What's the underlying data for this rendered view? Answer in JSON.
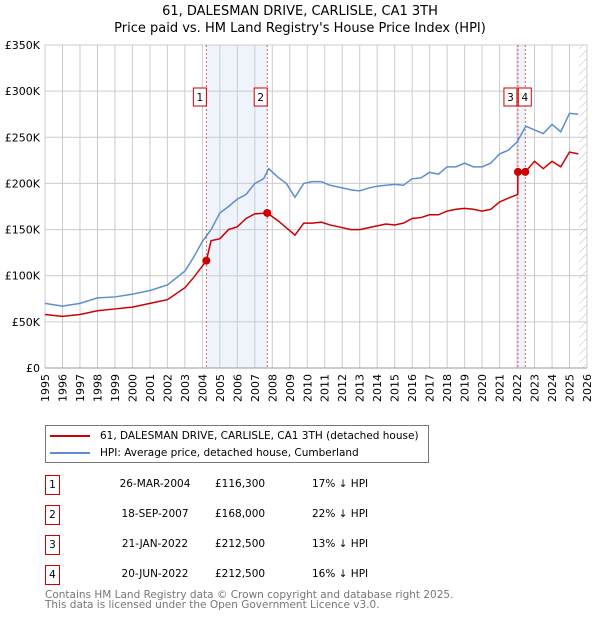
{
  "title": "61, DALESMAN DRIVE, CARLISLE, CA1 3TH",
  "subtitle": "Price paid vs. HM Land Registry's House Price Index (HPI)",
  "colors": {
    "property": "#cc0000",
    "hpi": "#5b8fd0",
    "shade": "#eef3fc"
  },
  "legend": {
    "property": "61, DALESMAN DRIVE, CARLISLE, CA1 3TH (detached house)",
    "hpi": "HPI: Average price, detached house, Cumberland"
  },
  "sales": [
    {
      "n": "1",
      "date": "26-MAR-2004",
      "price": "£116,300",
      "hpi": "17% ↓ HPI"
    },
    {
      "n": "2",
      "date": "18-SEP-2007",
      "price": "£168,000",
      "hpi": "22% ↓ HPI"
    },
    {
      "n": "3",
      "date": "21-JAN-2022",
      "price": "£212,500",
      "hpi": "13% ↓ HPI"
    },
    {
      "n": "4",
      "date": "20-JUN-2022",
      "price": "£212,500",
      "hpi": "16% ↓ HPI"
    }
  ],
  "footer": {
    "line1": "Contains HM Land Registry data © Crown copyright and database right 2025.",
    "line2": "This data is licensed under the Open Government Licence v3.0."
  },
  "chart_data": {
    "type": "line",
    "xlim": [
      1995,
      2026
    ],
    "ylim": [
      0,
      350000
    ],
    "yticks": [
      {
        "v": 0,
        "l": "£0"
      },
      {
        "v": 50000,
        "l": "£50K"
      },
      {
        "v": 100000,
        "l": "£100K"
      },
      {
        "v": 150000,
        "l": "£150K"
      },
      {
        "v": 200000,
        "l": "£200K"
      },
      {
        "v": 250000,
        "l": "£250K"
      },
      {
        "v": 300000,
        "l": "£300K"
      },
      {
        "v": 350000,
        "l": "£350K"
      }
    ],
    "xticks": [
      "1995",
      "1996",
      "1997",
      "1998",
      "1999",
      "2000",
      "2001",
      "2002",
      "2003",
      "2004",
      "2005",
      "2006",
      "2007",
      "2008",
      "2009",
      "2010",
      "2011",
      "2012",
      "2013",
      "2014",
      "2015",
      "2016",
      "2017",
      "2018",
      "2019",
      "2020",
      "2021",
      "2022",
      "2023",
      "2024",
      "2025",
      "2026"
    ],
    "shaded": [
      [
        2004.23,
        2007.71
      ],
      [
        2022.05,
        2022.47
      ]
    ],
    "forecast_from": 2025.55,
    "markers": [
      {
        "n": "1",
        "x": 2004.23,
        "y": 116300
      },
      {
        "n": "2",
        "x": 2007.71,
        "y": 168000
      },
      {
        "n": "3",
        "x": 2022.05,
        "y": 212500
      },
      {
        "n": "4",
        "x": 2022.47,
        "y": 212500
      }
    ],
    "series": [
      {
        "name": "hpi",
        "points": [
          [
            1995,
            70
          ],
          [
            1996,
            67
          ],
          [
            1997,
            70
          ],
          [
            1998,
            76
          ],
          [
            1999,
            77
          ],
          [
            2000,
            80
          ],
          [
            2001,
            84
          ],
          [
            2002,
            90
          ],
          [
            2003,
            105
          ],
          [
            2003.5,
            120
          ],
          [
            2004,
            137
          ],
          [
            2004.5,
            150
          ],
          [
            2005,
            168
          ],
          [
            2005.5,
            175
          ],
          [
            2006,
            183
          ],
          [
            2006.5,
            188
          ],
          [
            2007,
            200
          ],
          [
            2007.5,
            205
          ],
          [
            2007.8,
            216
          ],
          [
            2008.3,
            207
          ],
          [
            2008.8,
            200
          ],
          [
            2009.3,
            185
          ],
          [
            2009.8,
            200
          ],
          [
            2010.3,
            202
          ],
          [
            2010.8,
            202
          ],
          [
            2011.3,
            198
          ],
          [
            2011.8,
            196
          ],
          [
            2012.5,
            193
          ],
          [
            2013,
            192
          ],
          [
            2013.5,
            195
          ],
          [
            2014,
            197
          ],
          [
            2014.5,
            198
          ],
          [
            2015,
            199
          ],
          [
            2015.5,
            198
          ],
          [
            2016,
            205
          ],
          [
            2016.5,
            206
          ],
          [
            2017,
            212
          ],
          [
            2017.5,
            210
          ],
          [
            2018,
            218
          ],
          [
            2018.5,
            218
          ],
          [
            2019,
            222
          ],
          [
            2019.5,
            218
          ],
          [
            2020,
            218
          ],
          [
            2020.5,
            222
          ],
          [
            2021,
            232
          ],
          [
            2021.5,
            236
          ],
          [
            2022,
            245
          ],
          [
            2022.5,
            262
          ],
          [
            2023,
            258
          ],
          [
            2023.5,
            254
          ],
          [
            2024,
            264
          ],
          [
            2024.5,
            256
          ],
          [
            2025,
            276
          ],
          [
            2025.5,
            275
          ]
        ]
      },
      {
        "name": "property",
        "points": [
          [
            1995,
            58
          ],
          [
            1996,
            56
          ],
          [
            1997,
            58
          ],
          [
            1998,
            62
          ],
          [
            1999,
            64
          ],
          [
            2000,
            66
          ],
          [
            2001,
            70
          ],
          [
            2002,
            74
          ],
          [
            2003,
            87
          ],
          [
            2003.5,
            98
          ],
          [
            2004.23,
            116.3
          ],
          [
            2004.5,
            138
          ],
          [
            2005,
            140
          ],
          [
            2005.5,
            150
          ],
          [
            2006,
            153
          ],
          [
            2006.5,
            162
          ],
          [
            2007,
            167
          ],
          [
            2007.71,
            168
          ],
          [
            2008.3,
            160
          ],
          [
            2008.8,
            152
          ],
          [
            2009.3,
            144
          ],
          [
            2009.8,
            157
          ],
          [
            2010.3,
            157
          ],
          [
            2010.8,
            158
          ],
          [
            2011.3,
            155
          ],
          [
            2011.8,
            153
          ],
          [
            2012.5,
            150
          ],
          [
            2013,
            150
          ],
          [
            2013.5,
            152
          ],
          [
            2014,
            154
          ],
          [
            2014.5,
            156
          ],
          [
            2015,
            155
          ],
          [
            2015.5,
            157
          ],
          [
            2016,
            162
          ],
          [
            2016.5,
            163
          ],
          [
            2017,
            166
          ],
          [
            2017.5,
            166
          ],
          [
            2018,
            170
          ],
          [
            2018.5,
            172
          ],
          [
            2019,
            173
          ],
          [
            2019.5,
            172
          ],
          [
            2020,
            170
          ],
          [
            2020.5,
            172
          ],
          [
            2021,
            180
          ],
          [
            2021.5,
            184
          ],
          [
            2022.04,
            188
          ],
          [
            2022.05,
            212.5
          ],
          [
            2022.47,
            212.5
          ],
          [
            2023,
            224
          ],
          [
            2023.5,
            216
          ],
          [
            2024,
            224
          ],
          [
            2024.5,
            218
          ],
          [
            2025,
            234
          ],
          [
            2025.5,
            232
          ]
        ]
      }
    ]
  }
}
